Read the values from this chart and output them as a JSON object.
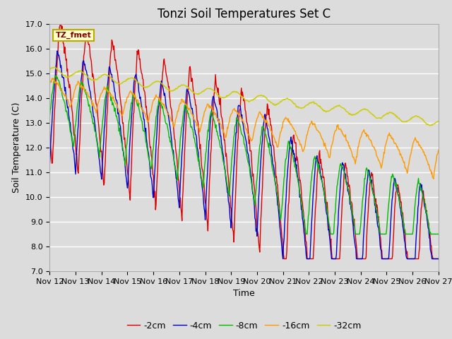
{
  "title": "Tonzi Soil Temperatures Set C",
  "xlabel": "Time",
  "ylabel": "Soil Temperature (C)",
  "ylim": [
    7.0,
    17.0
  ],
  "yticks": [
    7.0,
    8.0,
    9.0,
    10.0,
    11.0,
    12.0,
    13.0,
    14.0,
    15.0,
    16.0,
    17.0
  ],
  "xtick_labels": [
    "Nov 12",
    "Nov 13",
    "Nov 14",
    "Nov 15",
    "Nov 16",
    "Nov 17",
    "Nov 18",
    "Nov 19",
    "Nov 20",
    "Nov 21",
    "Nov 22",
    "Nov 23",
    "Nov 24",
    "Nov 25",
    "Nov 26",
    "Nov 27"
  ],
  "series_colors": [
    "#dd0000",
    "#0000cc",
    "#00bb00",
    "#ff9900",
    "#cccc00"
  ],
  "series_labels": [
    "-2cm",
    "-4cm",
    "-8cm",
    "-16cm",
    "-32cm"
  ],
  "bg_color": "#dcdcdc",
  "grid_color": "#ffffff",
  "legend_label": "TZ_fmet",
  "legend_label_color": "#880000",
  "legend_bg": "#ffffcc",
  "legend_border": "#bbaa00",
  "title_fontsize": 12,
  "axis_label_fontsize": 9,
  "tick_fontsize": 8,
  "linewidth": 1.0
}
